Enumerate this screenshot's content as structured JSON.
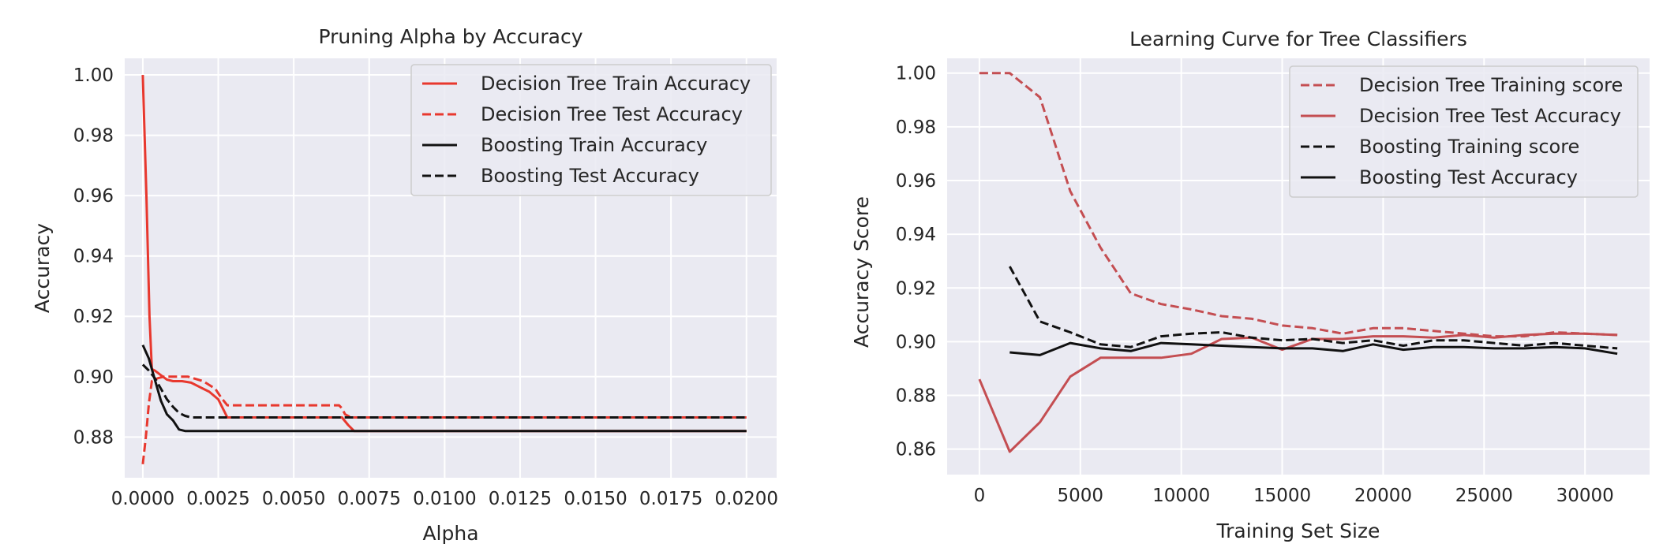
{
  "chart_data": [
    {
      "type": "line",
      "title": "Pruning Alpha by Accuracy",
      "xlabel": "Alpha",
      "ylabel": "Accuracy",
      "xlim": [
        -0.0006,
        0.021
      ],
      "ylim": [
        0.8665,
        1.0055
      ],
      "xticks": [
        0.0,
        0.0025,
        0.005,
        0.0075,
        0.01,
        0.0125,
        0.015,
        0.0175,
        0.02
      ],
      "xtick_labels": [
        "0.0000",
        "0.0025",
        "0.0050",
        "0.0075",
        "0.0100",
        "0.0125",
        "0.0150",
        "0.0175",
        "0.0200"
      ],
      "yticks": [
        0.88,
        0.9,
        0.92,
        0.94,
        0.96,
        0.98,
        1.0
      ],
      "ytick_labels": [
        "0.88",
        "0.90",
        "0.92",
        "0.94",
        "0.96",
        "0.98",
        "1.00"
      ],
      "grid": true,
      "legend_position": "top-right",
      "series": [
        {
          "name": "Decision Tree Train Accuracy",
          "color": "#e8382e",
          "dash": "solid",
          "x": [
            0.0,
            0.00012,
            0.00022,
            0.0003,
            0.0004,
            0.0006,
            0.0008,
            0.001,
            0.0013,
            0.0016,
            0.0019,
            0.0022,
            0.0025,
            0.0027,
            0.0028,
            0.0035,
            0.0045,
            0.0055,
            0.0065,
            0.0066,
            0.0068,
            0.007,
            0.01,
            0.015,
            0.02
          ],
          "y": [
            1.0,
            0.96,
            0.92,
            0.9025,
            0.902,
            0.9005,
            0.899,
            0.8985,
            0.8985,
            0.898,
            0.8965,
            0.895,
            0.8925,
            0.8885,
            0.8865,
            0.8865,
            0.8865,
            0.8865,
            0.8865,
            0.8865,
            0.884,
            0.882,
            0.882,
            0.882,
            0.882
          ]
        },
        {
          "name": "Decision Tree Test Accuracy",
          "color": "#e8382e",
          "dash": "dashed",
          "x": [
            0.0,
            0.0001,
            0.0002,
            0.0003,
            0.0005,
            0.0007,
            0.001,
            0.0015,
            0.002,
            0.0024,
            0.0026,
            0.0028,
            0.004,
            0.005,
            0.0065,
            0.0066,
            0.0067,
            0.0069,
            0.01,
            0.015,
            0.02
          ],
          "y": [
            0.871,
            0.88,
            0.891,
            0.8985,
            0.8995,
            0.9,
            0.9,
            0.9,
            0.8985,
            0.896,
            0.893,
            0.8905,
            0.8905,
            0.8905,
            0.8905,
            0.8895,
            0.8875,
            0.8865,
            0.8865,
            0.8865,
            0.8865
          ]
        },
        {
          "name": "Boosting Train Accuracy",
          "color": "#111111",
          "dash": "solid",
          "x": [
            0.0,
            0.0002,
            0.0004,
            0.0006,
            0.0008,
            0.001,
            0.0012,
            0.0014,
            0.0016,
            0.002,
            0.005,
            0.01,
            0.015,
            0.02
          ],
          "y": [
            0.9105,
            0.906,
            0.899,
            0.892,
            0.8875,
            0.8855,
            0.8825,
            0.882,
            0.882,
            0.882,
            0.882,
            0.882,
            0.882,
            0.882
          ],
          "legend_index": 2
        },
        {
          "name": "Boosting Test Accuracy",
          "color": "#111111",
          "dash": "dashed",
          "x": [
            0.0,
            0.0002,
            0.0004,
            0.0006,
            0.0008,
            0.001,
            0.0012,
            0.0014,
            0.0016,
            0.002,
            0.005,
            0.01,
            0.015,
            0.02
          ],
          "y": [
            0.904,
            0.902,
            0.8995,
            0.896,
            0.8925,
            0.89,
            0.888,
            0.887,
            0.8865,
            0.8865,
            0.8865,
            0.8865,
            0.8865,
            0.8865
          ]
        }
      ]
    },
    {
      "type": "line",
      "title": "Learning Curve for Tree Classifiers",
      "xlabel": "Training Set Size",
      "ylabel": "Accuracy Score",
      "xlim": [
        -1600,
        33200
      ],
      "ylim": [
        0.8505,
        1.0055
      ],
      "xticks": [
        0,
        5000,
        10000,
        15000,
        20000,
        25000,
        30000
      ],
      "xtick_labels": [
        "0",
        "5000",
        "10000",
        "15000",
        "20000",
        "25000",
        "30000"
      ],
      "yticks": [
        0.86,
        0.88,
        0.9,
        0.92,
        0.94,
        0.96,
        0.98,
        1.0
      ],
      "ytick_labels": [
        "0.86",
        "0.88",
        "0.90",
        "0.92",
        "0.94",
        "0.96",
        "0.98",
        "1.00"
      ],
      "grid": true,
      "legend_position": "top-right",
      "series": [
        {
          "name": "Decision Tree Training score",
          "color": "#c44e52",
          "dash": "dashed",
          "x": [
            0,
            1500,
            3000,
            4500,
            6000,
            7500,
            9000,
            10500,
            12000,
            13500,
            15000,
            16500,
            18000,
            19500,
            21000,
            22500,
            24000,
            25500,
            27000,
            28500,
            30000,
            31600
          ],
          "y": [
            1.0,
            1.0,
            0.991,
            0.956,
            0.935,
            0.918,
            0.914,
            0.912,
            0.9095,
            0.9085,
            0.906,
            0.905,
            0.903,
            0.905,
            0.905,
            0.904,
            0.903,
            0.902,
            0.902,
            0.9035,
            0.903,
            0.9025
          ]
        },
        {
          "name": "Decision Tree Test Accuracy",
          "color": "#c44e52",
          "dash": "solid",
          "x": [
            0,
            1500,
            3000,
            4500,
            6000,
            7500,
            9000,
            10500,
            12000,
            13500,
            15000,
            16500,
            18000,
            19500,
            21000,
            22500,
            24000,
            25500,
            27000,
            28500,
            30000,
            31600
          ],
          "y": [
            0.886,
            0.859,
            0.87,
            0.887,
            0.894,
            0.894,
            0.894,
            0.8955,
            0.901,
            0.9015,
            0.897,
            0.901,
            0.901,
            0.902,
            0.902,
            0.9015,
            0.9025,
            0.9015,
            0.9025,
            0.903,
            0.903,
            0.9025
          ]
        },
        {
          "name": "Boosting Training score",
          "color": "#111111",
          "dash": "dashed",
          "x": [
            0,
            1500,
            3000,
            4500,
            6000,
            7500,
            9000,
            10500,
            12000,
            13500,
            15000,
            16500,
            18000,
            19500,
            21000,
            22500,
            24000,
            25500,
            27000,
            28500,
            30000,
            31600
          ],
          "y": [
            null,
            0.928,
            0.9075,
            0.9035,
            0.899,
            0.898,
            0.902,
            0.903,
            0.9035,
            0.9015,
            0.9005,
            0.901,
            0.8995,
            0.9005,
            0.8985,
            0.9005,
            0.9005,
            0.8995,
            0.8985,
            0.8995,
            0.8985,
            0.8975
          ]
        },
        {
          "name": "Boosting Test Accuracy",
          "color": "#111111",
          "dash": "solid",
          "x": [
            0,
            1500,
            3000,
            4500,
            6000,
            7500,
            9000,
            10500,
            12000,
            13500,
            15000,
            16500,
            18000,
            19500,
            21000,
            22500,
            24000,
            25500,
            27000,
            28500,
            30000,
            31600
          ],
          "y": [
            null,
            0.896,
            0.895,
            0.8995,
            0.8975,
            0.8965,
            0.8995,
            0.899,
            0.8985,
            0.898,
            0.8975,
            0.8975,
            0.8965,
            0.899,
            0.897,
            0.898,
            0.898,
            0.8975,
            0.8975,
            0.898,
            0.8975,
            0.8955
          ]
        }
      ]
    }
  ]
}
